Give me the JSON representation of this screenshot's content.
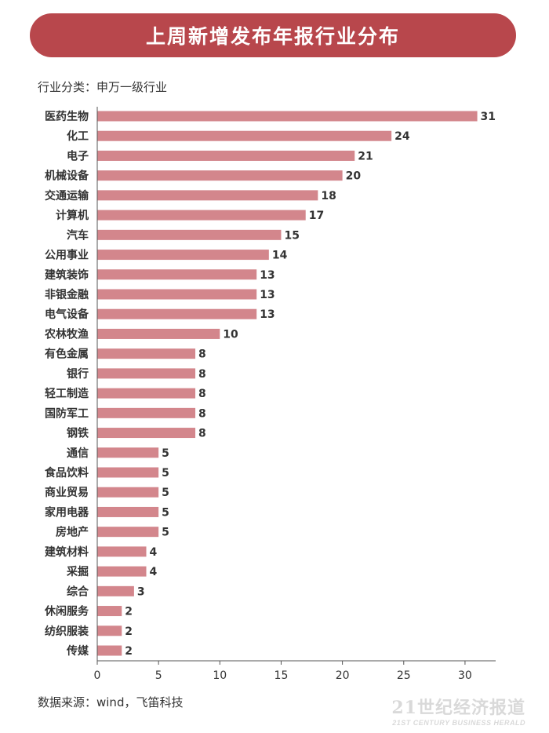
{
  "header": {
    "title": "上周新增发布年报行业分布"
  },
  "subtitle": "行业分类：申万一级行业",
  "source": "数据来源：wind，飞笛科技",
  "watermark": {
    "main": "21世纪经济报道",
    "sub": "21ST CENTURY BUSINESS HERALD"
  },
  "colors": {
    "bar": "#d3868c",
    "banner": "#b8474c",
    "axis": "#555555"
  },
  "chart_data": {
    "type": "bar",
    "orientation": "horizontal",
    "categories": [
      "医药生物",
      "化工",
      "电子",
      "机械设备",
      "交通运输",
      "计算机",
      "汽车",
      "公用事业",
      "建筑装饰",
      "非银金融",
      "电气设备",
      "农林牧渔",
      "有色金属",
      "银行",
      "轻工制造",
      "国防军工",
      "钢铁",
      "通信",
      "食品饮料",
      "商业贸易",
      "家用电器",
      "房地产",
      "建筑材料",
      "采掘",
      "综合",
      "休闲服务",
      "纺织服装",
      "传媒"
    ],
    "values": [
      31,
      24,
      21,
      20,
      18,
      17,
      15,
      14,
      13,
      13,
      13,
      10,
      8,
      8,
      8,
      8,
      8,
      5,
      5,
      5,
      5,
      5,
      4,
      4,
      3,
      2,
      2,
      2
    ],
    "title": "上周新增发布年报行业分布",
    "xlim": [
      0,
      32.5
    ],
    "xticks": [
      0,
      5,
      10,
      15,
      20,
      25,
      30
    ],
    "grid": false,
    "data_labels": true
  }
}
